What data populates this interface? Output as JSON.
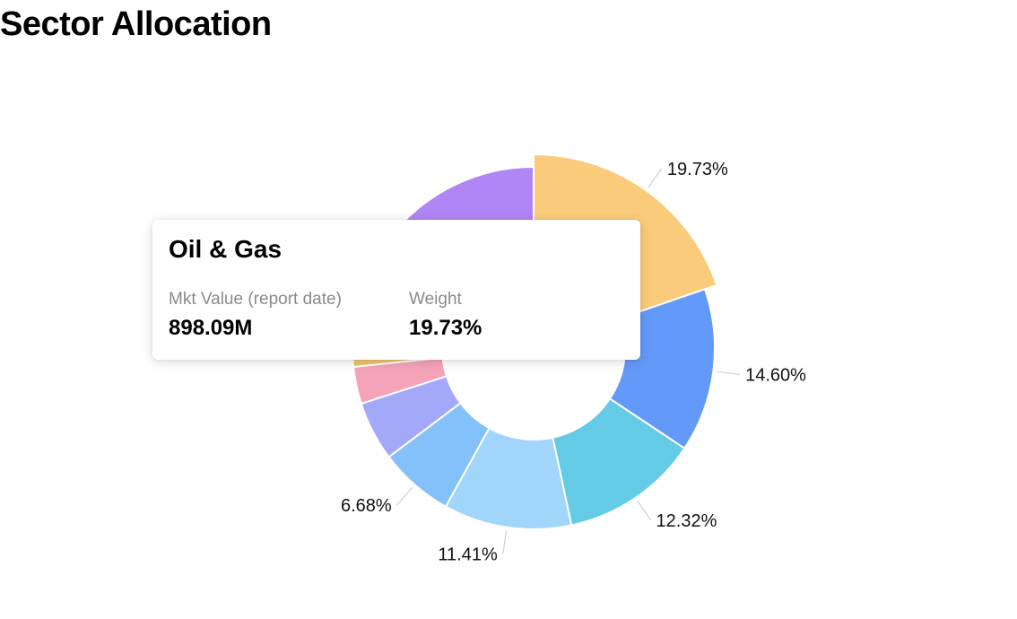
{
  "header": {
    "title": "Sector Allocation"
  },
  "chart_data": {
    "type": "pie",
    "variant": "donut",
    "title": "Sector Allocation",
    "slices": [
      {
        "name": "Oil & Gas",
        "value": 19.73,
        "label": "19.73%",
        "color": "#FACB7A",
        "highlighted": true
      },
      {
        "name": "",
        "value": 14.6,
        "label": "14.60%",
        "color": "#6399F8"
      },
      {
        "name": "",
        "value": 12.32,
        "label": "12.32%",
        "color": "#63CBE6"
      },
      {
        "name": "",
        "value": 11.41,
        "label": "11.41%",
        "color": "#A1D6FA"
      },
      {
        "name": "",
        "value": 6.68,
        "label": "6.68%",
        "color": "#84C1FA"
      },
      {
        "name": "",
        "value": 5.3,
        "label": "",
        "color": "#A3A9F8"
      },
      {
        "name": "",
        "value": 3.3,
        "label": "",
        "color": "#F5A3B8"
      },
      {
        "name": "",
        "value": 12.1,
        "label": "",
        "color": "#F2C46E"
      },
      {
        "name": "",
        "value": 14.56,
        "label": "",
        "color": "#B085F5"
      }
    ]
  },
  "tooltip": {
    "title": "Oil & Gas",
    "mkt_value_label": "Mkt Value (report date)",
    "mkt_value": "898.09M",
    "weight_label": "Weight",
    "weight": "19.73%"
  }
}
